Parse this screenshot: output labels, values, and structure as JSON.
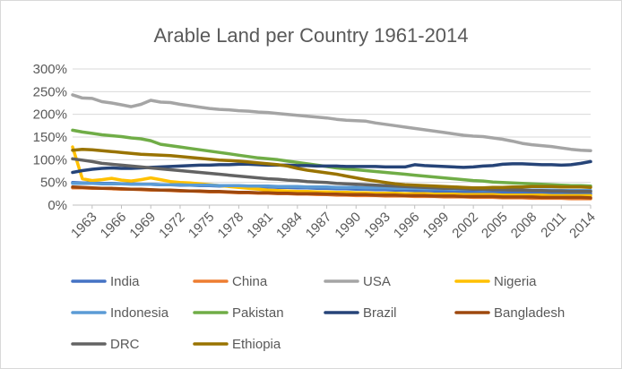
{
  "chart_data": {
    "type": "line",
    "title": "Arable Land per Country 1961-2014",
    "xlabel": "",
    "ylabel": "",
    "x": [
      1961,
      1962,
      1963,
      1964,
      1965,
      1966,
      1967,
      1968,
      1969,
      1970,
      1971,
      1972,
      1973,
      1974,
      1975,
      1976,
      1977,
      1978,
      1979,
      1980,
      1981,
      1982,
      1983,
      1984,
      1985,
      1986,
      1987,
      1988,
      1989,
      1990,
      1991,
      1992,
      1993,
      1994,
      1995,
      1996,
      1997,
      1998,
      1999,
      2000,
      2001,
      2002,
      2003,
      2004,
      2005,
      2006,
      2007,
      2008,
      2009,
      2010,
      2011,
      2012,
      2013,
      2014
    ],
    "x_tick_labels": [
      "1963",
      "1966",
      "1969",
      "1972",
      "1975",
      "1978",
      "1981",
      "1984",
      "1987",
      "1990",
      "1993",
      "1996",
      "1999",
      "2002",
      "2005",
      "2008",
      "2011",
      "2014"
    ],
    "y_tick_labels": [
      "0%",
      "50%",
      "100%",
      "150%",
      "200%",
      "250%",
      "300%"
    ],
    "ylim": [
      0,
      300
    ],
    "y_unit": "%",
    "grid": true,
    "legend_position": "bottom",
    "series": [
      {
        "name": "India",
        "color": "#4472c4",
        "values": [
          50,
          49,
          49,
          48,
          48,
          47,
          47,
          46,
          46,
          45,
          45,
          44,
          44,
          43,
          43,
          42,
          42,
          41,
          41,
          40,
          40,
          39,
          39,
          38,
          38,
          37,
          37,
          36,
          36,
          35,
          35,
          34,
          34,
          33,
          33,
          32,
          32,
          31,
          31,
          30,
          30,
          29,
          29,
          28,
          28,
          27,
          27,
          27,
          26,
          26,
          26,
          25,
          25,
          25
        ]
      },
      {
        "name": "China",
        "color": "#ed7d31",
        "values": [
          38,
          38,
          37,
          37,
          36,
          35,
          35,
          34,
          33,
          33,
          32,
          31,
          31,
          30,
          29,
          29,
          28,
          27,
          27,
          26,
          26,
          25,
          25,
          24,
          24,
          23,
          23,
          22,
          22,
          21,
          21,
          21,
          20,
          20,
          20,
          19,
          19,
          19,
          18,
          18,
          18,
          17,
          17,
          17,
          16,
          16,
          16,
          15,
          15,
          15,
          15,
          14,
          14,
          14
        ]
      },
      {
        "name": "USA",
        "color": "#a5a5a5",
        "values": [
          243,
          236,
          235,
          228,
          225,
          221,
          217,
          222,
          231,
          227,
          226,
          222,
          219,
          216,
          213,
          211,
          210,
          208,
          207,
          205,
          204,
          202,
          200,
          198,
          196,
          194,
          192,
          189,
          187,
          186,
          185,
          181,
          178,
          175,
          172,
          169,
          166,
          163,
          160,
          157,
          154,
          152,
          151,
          148,
          145,
          141,
          136,
          133,
          131,
          129,
          126,
          123,
          121,
          120
        ]
      },
      {
        "name": "Nigeria",
        "color": "#ffc000",
        "values": [
          128,
          58,
          54,
          56,
          59,
          55,
          53,
          56,
          60,
          56,
          52,
          50,
          49,
          47,
          45,
          43,
          41,
          39,
          37,
          35,
          33,
          32,
          31,
          30,
          30,
          29,
          29,
          28,
          28,
          27,
          27,
          26,
          26,
          26,
          25,
          25,
          25,
          24,
          24,
          24,
          23,
          23,
          23,
          23,
          22,
          22,
          22,
          22,
          22,
          21,
          21,
          21,
          21,
          21
        ]
      },
      {
        "name": "Indonesia",
        "color": "#5b9bd5",
        "values": [
          48,
          48,
          48,
          47,
          47,
          47,
          46,
          46,
          46,
          45,
          45,
          45,
          44,
          44,
          44,
          43,
          43,
          43,
          42,
          42,
          42,
          41,
          41,
          41,
          40,
          40,
          40,
          39,
          39,
          39,
          38,
          38,
          38,
          37,
          37,
          37,
          36,
          36,
          36,
          35,
          35,
          35,
          34,
          34,
          34,
          34,
          33,
          33,
          33,
          33,
          32,
          32,
          32,
          32
        ]
      },
      {
        "name": "Pakistan",
        "color": "#70ad47",
        "values": [
          165,
          161,
          158,
          155,
          153,
          151,
          148,
          146,
          142,
          134,
          131,
          128,
          125,
          122,
          119,
          116,
          113,
          110,
          107,
          104,
          102,
          100,
          97,
          94,
          91,
          88,
          85,
          82,
          80,
          78,
          76,
          74,
          72,
          70,
          68,
          66,
          64,
          62,
          60,
          58,
          56,
          54,
          53,
          51,
          50,
          49,
          48,
          47,
          46,
          45,
          44,
          43,
          43,
          42
        ]
      },
      {
        "name": "Brazil",
        "color": "#264478",
        "values": [
          72,
          76,
          79,
          81,
          82,
          81,
          81,
          82,
          83,
          84,
          85,
          86,
          87,
          88,
          88,
          89,
          89,
          90,
          90,
          89,
          88,
          88,
          88,
          87,
          87,
          86,
          86,
          86,
          85,
          85,
          85,
          85,
          84,
          84,
          84,
          89,
          87,
          86,
          85,
          84,
          83,
          84,
          86,
          87,
          90,
          91,
          91,
          90,
          89,
          89,
          88,
          89,
          92,
          96
        ]
      },
      {
        "name": "Bangladesh",
        "color": "#9e480e",
        "values": [
          40,
          39,
          38,
          37,
          37,
          36,
          35,
          35,
          34,
          33,
          33,
          32,
          31,
          31,
          30,
          30,
          29,
          28,
          28,
          27,
          27,
          26,
          26,
          25,
          25,
          25,
          24,
          24,
          23,
          23,
          23,
          22,
          22,
          22,
          21,
          21,
          21,
          20,
          20,
          20,
          19,
          19,
          19,
          19,
          18,
          18,
          18,
          18,
          17,
          17,
          17,
          17,
          17,
          16
        ]
      },
      {
        "name": "DRC",
        "color": "#636363",
        "values": [
          102,
          99,
          96,
          92,
          90,
          88,
          86,
          84,
          82,
          80,
          78,
          76,
          74,
          72,
          70,
          68,
          66,
          64,
          62,
          60,
          58,
          57,
          55,
          54,
          52,
          51,
          50,
          48,
          47,
          46,
          45,
          44,
          43,
          42,
          41,
          40,
          39,
          38,
          37,
          37,
          36,
          35,
          35,
          34,
          34,
          33,
          33,
          32,
          32,
          31,
          31,
          30,
          30,
          30
        ]
      },
      {
        "name": "Ethiopia",
        "color": "#997300",
        "values": [
          121,
          123,
          122,
          120,
          118,
          116,
          114,
          112,
          111,
          110,
          109,
          107,
          105,
          103,
          101,
          99,
          98,
          97,
          95,
          93,
          91,
          89,
          86,
          81,
          77,
          74,
          71,
          68,
          64,
          60,
          56,
          53,
          50,
          47,
          45,
          44,
          43,
          42,
          41,
          40,
          39,
          38,
          38,
          39,
          39,
          40,
          40,
          41,
          41,
          41,
          40,
          40,
          40,
          39
        ]
      }
    ]
  }
}
